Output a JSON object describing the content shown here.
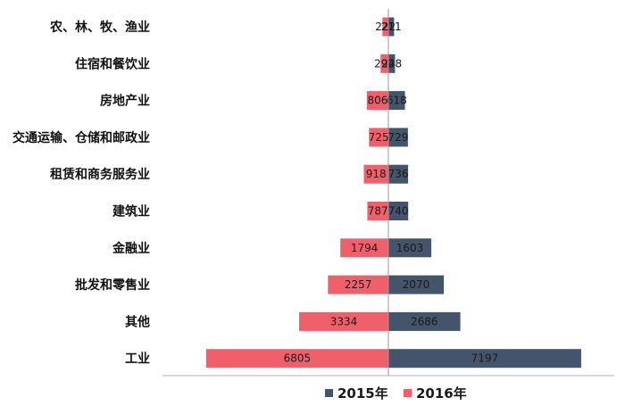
{
  "chart_data": {
    "type": "bar",
    "orientation": "horizontal-diverging",
    "categories": [
      "农、林、牧、渔业",
      "住宿和餐饮业",
      "房地产业",
      "交通运输、仓储和邮政业",
      "租赁和商务服务业",
      "建筑业",
      "金融业",
      "批发和零售业",
      "其他",
      "工业"
    ],
    "series": [
      {
        "name": "2015年",
        "color": "#44546a",
        "side": "right",
        "values": [
          211,
          248,
          618,
          729,
          736,
          740,
          1603,
          2070,
          2686,
          7197
        ]
      },
      {
        "name": "2016年",
        "color": "#f0606a",
        "side": "left",
        "values": [
          222,
          292,
          806,
          725,
          918,
          787,
          1794,
          2257,
          3334,
          6805
        ]
      }
    ],
    "legend_position": "bottom",
    "grid": false
  }
}
